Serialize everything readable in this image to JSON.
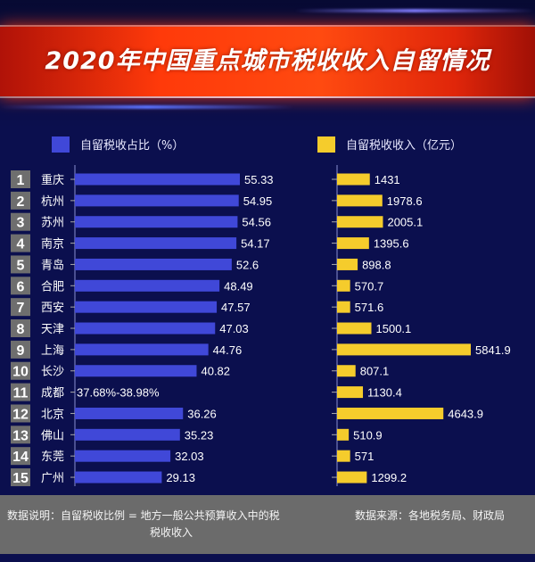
{
  "title": "2020年中国重点城市税收收入自留情况",
  "colors": {
    "ratio_bar": "#4048d8",
    "income_bar": "#f5cc2c",
    "background": "#0b0f4e",
    "title_band": "#ff3a0a"
  },
  "legend": {
    "ratio": "自留税收占比（%）",
    "income": "自留税收收入（亿元）"
  },
  "chart_data": [
    {
      "type": "bar",
      "orientation": "horizontal",
      "series_name": "自留税收占比（%）",
      "categories": [
        "重庆",
        "杭州",
        "苏州",
        "南京",
        "青岛",
        "合肥",
        "西安",
        "天津",
        "上海",
        "长沙",
        "成都",
        "北京",
        "佛山",
        "东莞",
        "广州"
      ],
      "ranks": [
        "1",
        "2",
        "3",
        "4",
        "5",
        "6",
        "7",
        "8",
        "9",
        "10",
        "11",
        "12",
        "13",
        "14",
        "15"
      ],
      "values": [
        55.33,
        54.95,
        54.56,
        54.17,
        52.6,
        48.49,
        47.57,
        47.03,
        44.76,
        40.82,
        null,
        36.26,
        35.23,
        32.03,
        29.13
      ],
      "labels": [
        "55.33",
        "54.95",
        "54.56",
        "54.17",
        "52.6",
        "48.49",
        "47.57",
        "47.03",
        "44.76",
        "40.82",
        "37.68%-38.98%",
        "36.26",
        "35.23",
        "32.03",
        "29.13"
      ],
      "xlim": [
        0,
        60
      ]
    },
    {
      "type": "bar",
      "orientation": "horizontal",
      "series_name": "自留税收收入（亿元）",
      "categories": [
        "重庆",
        "杭州",
        "苏州",
        "南京",
        "青岛",
        "合肥",
        "西安",
        "天津",
        "上海",
        "长沙",
        "成都",
        "北京",
        "佛山",
        "东莞",
        "广州"
      ],
      "values": [
        1431,
        1978.6,
        2005.1,
        1395.6,
        898.8,
        570.7,
        571.6,
        1500.1,
        5841.9,
        807.1,
        1130.4,
        4643.9,
        510.9,
        571,
        1299.2
      ],
      "labels": [
        "1431",
        "1978.6",
        "2005.1",
        "1395.6",
        "898.8",
        "570.7",
        "571.6",
        "1500.1",
        "5841.9",
        "807.1",
        "1130.4",
        "4643.9",
        "510.9",
        "571",
        "1299.2"
      ],
      "xlim": [
        0,
        6000
      ]
    }
  ],
  "footer": {
    "note_line1": "数据说明：自留税收比例 = 地方一般公共预算收入中的税",
    "note_line2": "税收收入",
    "source": "数据来源：各地税务局、财政局"
  }
}
